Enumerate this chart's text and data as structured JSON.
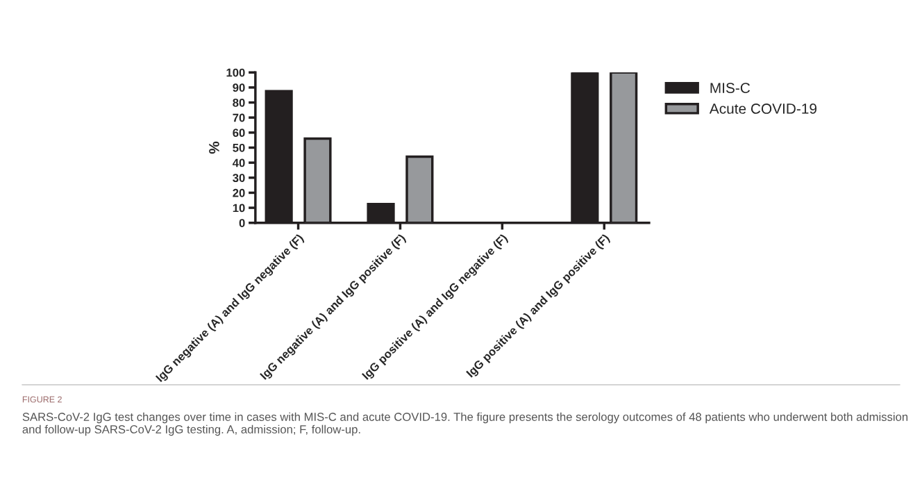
{
  "chart_data": {
    "type": "bar",
    "categories": [
      "IgG negative (A) and IgG negative (F)",
      "IgG negative (A) and IgG positive (F)",
      "IgG positive (A) and IgG negative (F)",
      "IgG positive (A) and IgG positive (F)"
    ],
    "series": [
      {
        "name": "MIS-C",
        "color": "#231f20",
        "values": [
          87.5,
          12.5,
          0,
          100
        ]
      },
      {
        "name": "Acute COVID-19",
        "color": "#97999c",
        "values": [
          56,
          44,
          0,
          100
        ]
      }
    ],
    "ylabel": "%",
    "ylim": [
      0,
      100
    ],
    "yticks": [
      0,
      10,
      20,
      30,
      40,
      50,
      60,
      70,
      80,
      90,
      100
    ],
    "grid": false,
    "legend": "top right",
    "annotations": [
      "FIGURE 2",
      "SARS-CoV-2 IgG test changes over time in cases with MIS-C and acute COVID-19. The figure presents the serology outcomes of 48 patients who underwent both admission and follow-up SARS-CoV-2 IgG testing. A, admission; F, follow-up."
    ]
  }
}
